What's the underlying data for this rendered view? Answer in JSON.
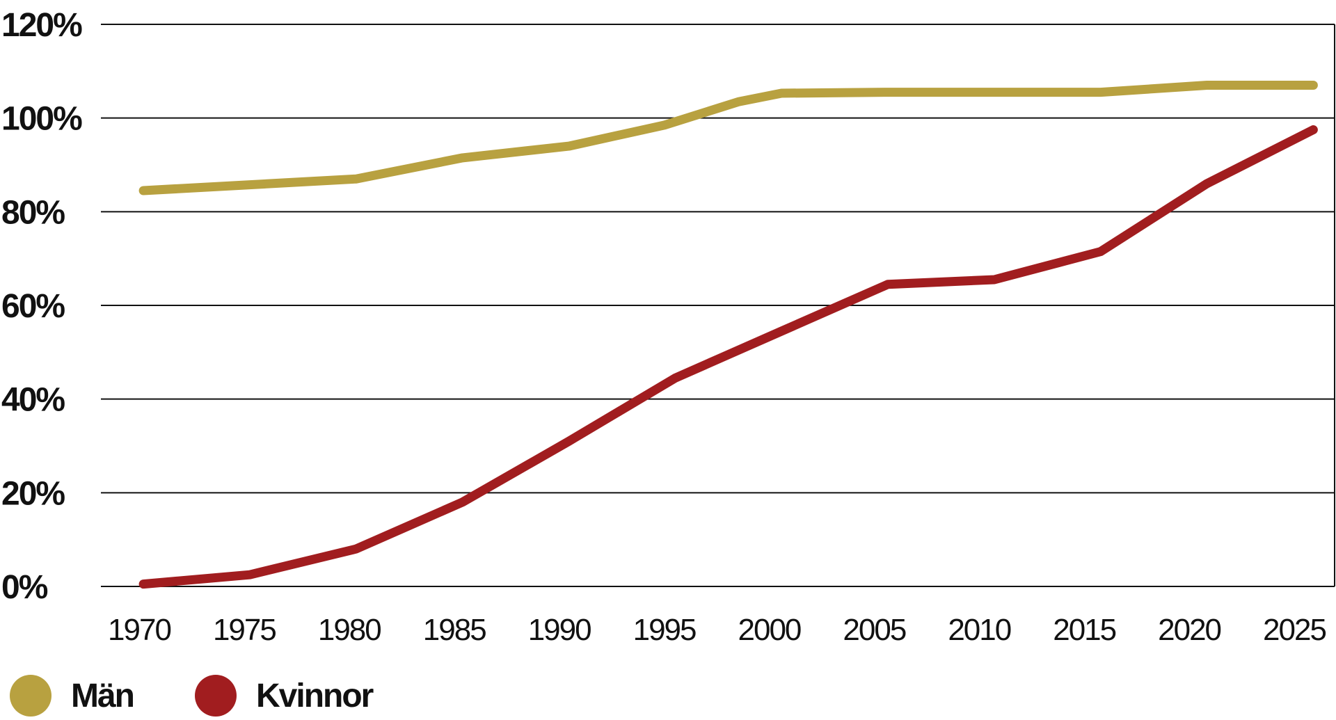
{
  "chart_data": {
    "type": "line",
    "title": "",
    "xlabel": "",
    "ylabel": "",
    "x": [
      1970,
      1975,
      1980,
      1985,
      1990,
      1995,
      2000,
      2005,
      2010,
      2015,
      2020,
      2025
    ],
    "xlim": [
      1968,
      2026
    ],
    "ylim": [
      0,
      120
    ],
    "y_ticks": [
      "0%",
      "20%",
      "40%",
      "60%",
      "80%",
      "100%",
      "120%"
    ],
    "x_ticks": [
      "1970",
      "1975",
      "1980",
      "1985",
      "1990",
      "1995",
      "2000",
      "2005",
      "2010",
      "2015",
      "2020",
      "2025"
    ],
    "grid": "horizontal",
    "legend_position": "bottom-left",
    "series": [
      {
        "name": "Män",
        "color": "#B8A140",
        "points": [
          [
            1970,
            84.5
          ],
          [
            1980,
            87
          ],
          [
            1985,
            91.5
          ],
          [
            1990,
            94
          ],
          [
            1994.5,
            98.5
          ],
          [
            1998,
            103.5
          ],
          [
            2000,
            105.3
          ],
          [
            2005,
            105.5
          ],
          [
            2010,
            105.5
          ],
          [
            2015,
            105.5
          ],
          [
            2020,
            107
          ],
          [
            2025,
            107
          ]
        ]
      },
      {
        "name": "Kvinnor",
        "color": "#A11D1F",
        "points": [
          [
            1970,
            0.5
          ],
          [
            1975,
            2.5
          ],
          [
            1980,
            8
          ],
          [
            1985,
            18
          ],
          [
            1990,
            31
          ],
          [
            1995,
            44.5
          ],
          [
            2000,
            54.5
          ],
          [
            2005,
            64.5
          ],
          [
            2010,
            65.5
          ],
          [
            2015,
            71.5
          ],
          [
            2020,
            86
          ],
          [
            2025,
            97.5
          ]
        ]
      }
    ]
  }
}
